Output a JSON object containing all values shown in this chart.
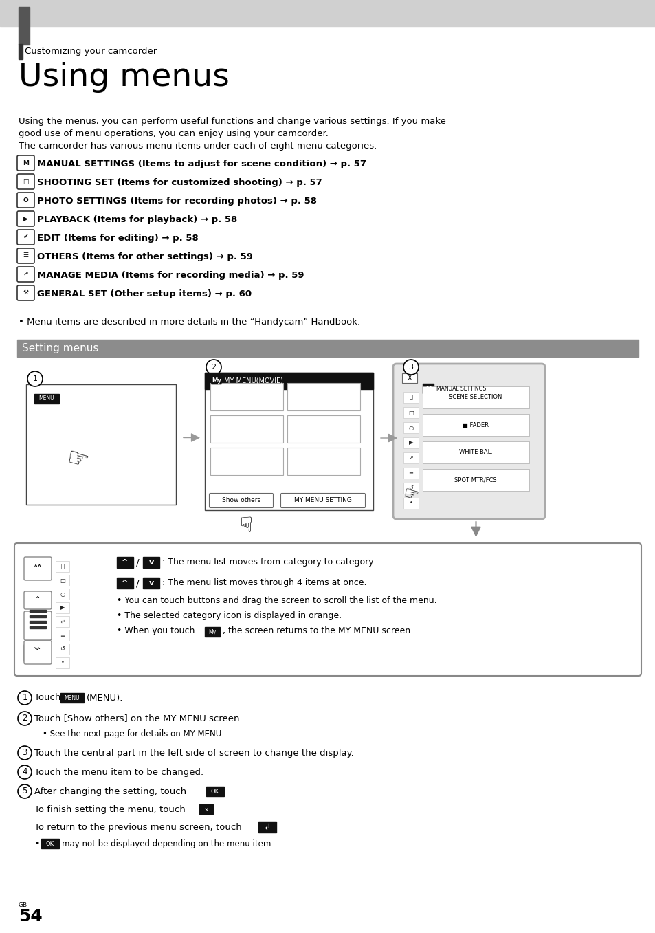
{
  "bg_color": "#ffffff",
  "top_bar_color": "#d0d0d0",
  "dark_side_color": "#555555",
  "section_bar_color": "#8c8c8c",
  "subtitle": "Customizing your camcorder",
  "title": "Using menus",
  "intro_lines": [
    "Using the menus, you can perform useful functions and change various settings. If you make",
    "good use of menu operations, you can enjoy using your camcorder.",
    "The camcorder has various menu items under each of eight menu categories."
  ],
  "menu_items": [
    "MANUAL SETTINGS (Items to adjust for scene condition) → p. 57",
    "SHOOTING SET (Items for customized shooting) → p. 57",
    "PHOTO SETTINGS (Items for recording photos) → p. 58",
    "PLAYBACK (Items for playback) → p. 58",
    "EDIT (Items for editing) → p. 58",
    "OTHERS (Items for other settings) → p. 59",
    "MANAGE MEDIA (Items for recording media) → p. 59",
    "GENERAL SET (Other setup items) → p. 60"
  ],
  "bullet_note": "Menu items are described in more details in the “Handycam” Handbook.",
  "section_title": "Setting menus",
  "menu_rows_box3": [
    "SCENE SELECTION",
    "■ FADER",
    "WHITE BAL.",
    "SPOT MTR/FCS"
  ],
  "note_line1": ": The menu list moves from category to category.",
  "note_line2": ": The menu list moves through 4 items at once.",
  "note_line3": "• You can touch buttons and drag the screen to scroll the list of the menu.",
  "note_line4": "• The selected category icon is displayed in orange.",
  "note_line5a": "• When you touch",
  "note_line5b": ", the screen returns to the MY MENU screen.",
  "step2_sub": "• See the next page for details on MY MENU.",
  "page_num": "54",
  "page_gb": "GB"
}
